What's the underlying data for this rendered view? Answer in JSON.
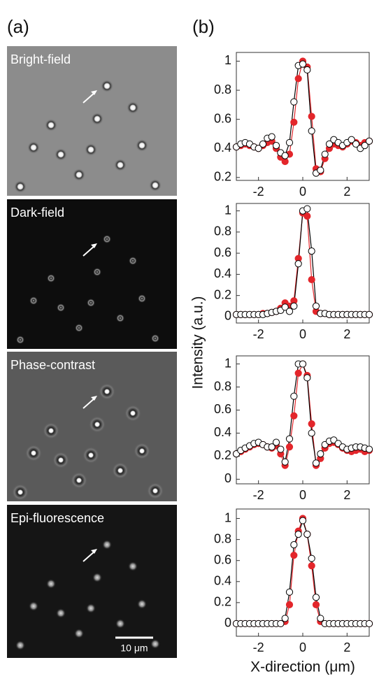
{
  "panel_labels": [
    "(a)",
    "(b)"
  ],
  "images": [
    {
      "label": "Bright-field"
    },
    {
      "label": "Dark-field"
    },
    {
      "label": "Phase-contrast"
    },
    {
      "label": "Epi-fluorescence"
    }
  ],
  "scale_bar": "10 μm",
  "y_label": "Intensity (a.u.)",
  "x_label": "X-direction (μm)",
  "chart_data": [
    {
      "type": "line",
      "x": [
        -3,
        -2.8,
        -2.6,
        -2.4,
        -2.2,
        -2,
        -1.8,
        -1.6,
        -1.4,
        -1.2,
        -1,
        -0.8,
        -0.6,
        -0.4,
        -0.2,
        0,
        0.2,
        0.4,
        0.6,
        0.8,
        1,
        1.2,
        1.4,
        1.6,
        1.8,
        2,
        2.2,
        2.4,
        2.6,
        2.8,
        3
      ],
      "xlim": [
        -3,
        3
      ],
      "xticks": [
        -2,
        0,
        2
      ],
      "ylim": [
        0.18,
        1.06
      ],
      "yticks": [
        0.2,
        0.4,
        0.6,
        0.8,
        1
      ],
      "series": [
        {
          "color": "#e3262b",
          "edgecolor": "#e3262b",
          "values": [
            0.41,
            0.42,
            0.43,
            0.42,
            0.41,
            0.4,
            0.42,
            0.44,
            0.45,
            0.4,
            0.34,
            0.31,
            0.36,
            0.58,
            0.88,
            1.0,
            0.96,
            0.62,
            0.26,
            0.24,
            0.33,
            0.4,
            0.43,
            0.42,
            0.41,
            0.43,
            0.45,
            0.44,
            0.42,
            0.44,
            0.45
          ]
        },
        {
          "color": "#ffffff",
          "edgecolor": "#000000",
          "values": [
            0.41,
            0.43,
            0.44,
            0.43,
            0.41,
            0.4,
            0.43,
            0.47,
            0.48,
            0.42,
            0.37,
            0.35,
            0.44,
            0.72,
            0.97,
            0.98,
            0.94,
            0.52,
            0.23,
            0.25,
            0.36,
            0.43,
            0.46,
            0.44,
            0.42,
            0.44,
            0.46,
            0.43,
            0.4,
            0.42,
            0.45
          ]
        }
      ]
    },
    {
      "type": "line",
      "x": [
        -3,
        -2.8,
        -2.6,
        -2.4,
        -2.2,
        -2,
        -1.8,
        -1.6,
        -1.4,
        -1.2,
        -1,
        -0.8,
        -0.6,
        -0.4,
        -0.2,
        0,
        0.2,
        0.4,
        0.6,
        0.8,
        1,
        1.2,
        1.4,
        1.6,
        1.8,
        2,
        2.2,
        2.4,
        2.6,
        2.8,
        3
      ],
      "xlim": [
        -3,
        3
      ],
      "xticks": [
        -2,
        0,
        2
      ],
      "ylim": [
        -0.06,
        1.07
      ],
      "yticks": [
        0,
        0.2,
        0.4,
        0.6,
        0.8,
        1
      ],
      "series": [
        {
          "color": "#e3262b",
          "edgecolor": "#e3262b",
          "values": [
            0.02,
            0.02,
            0.02,
            0.02,
            0.02,
            0.02,
            0.03,
            0.03,
            0.04,
            0.05,
            0.08,
            0.13,
            0.1,
            0.15,
            0.55,
            0.98,
            0.95,
            0.35,
            0.05,
            0.03,
            0.03,
            0.02,
            0.02,
            0.02,
            0.02,
            0.02,
            0.02,
            0.02,
            0.02,
            0.02,
            0.02
          ]
        },
        {
          "color": "#ffffff",
          "edgecolor": "#000000",
          "values": [
            0.02,
            0.02,
            0.02,
            0.02,
            0.02,
            0.02,
            0.02,
            0.03,
            0.04,
            0.05,
            0.06,
            0.09,
            0.05,
            0.1,
            0.5,
            1.0,
            1.02,
            0.62,
            0.1,
            0.03,
            0.03,
            0.02,
            0.02,
            0.02,
            0.02,
            0.02,
            0.02,
            0.02,
            0.02,
            0.02,
            0.02
          ]
        }
      ]
    },
    {
      "type": "line",
      "x": [
        -3,
        -2.8,
        -2.6,
        -2.4,
        -2.2,
        -2,
        -1.8,
        -1.6,
        -1.4,
        -1.2,
        -1,
        -0.8,
        -0.6,
        -0.4,
        -0.2,
        0,
        0.2,
        0.4,
        0.6,
        0.8,
        1,
        1.2,
        1.4,
        1.6,
        1.8,
        2,
        2.2,
        2.4,
        2.6,
        2.8,
        3
      ],
      "xlim": [
        -3,
        3
      ],
      "xticks": [
        -2,
        0,
        2
      ],
      "ylim": [
        -0.04,
        1.07
      ],
      "yticks": [
        0,
        0.2,
        0.4,
        0.6,
        0.8,
        1
      ],
      "series": [
        {
          "color": "#e3262b",
          "edgecolor": "#e3262b",
          "values": [
            0.22,
            0.24,
            0.26,
            0.28,
            0.3,
            0.31,
            0.3,
            0.28,
            0.27,
            0.29,
            0.22,
            0.12,
            0.28,
            0.55,
            0.92,
            1.0,
            0.9,
            0.48,
            0.12,
            0.18,
            0.27,
            0.31,
            0.32,
            0.3,
            0.27,
            0.25,
            0.24,
            0.25,
            0.26,
            0.24,
            0.25
          ]
        },
        {
          "color": "#ffffff",
          "edgecolor": "#000000",
          "values": [
            0.22,
            0.25,
            0.27,
            0.29,
            0.31,
            0.32,
            0.3,
            0.28,
            0.28,
            0.32,
            0.26,
            0.15,
            0.35,
            0.72,
            1.0,
            1.0,
            0.88,
            0.4,
            0.14,
            0.22,
            0.3,
            0.33,
            0.34,
            0.31,
            0.28,
            0.26,
            0.27,
            0.28,
            0.28,
            0.27,
            0.26
          ]
        }
      ]
    },
    {
      "type": "line",
      "x": [
        -3,
        -2.8,
        -2.6,
        -2.4,
        -2.2,
        -2,
        -1.8,
        -1.6,
        -1.4,
        -1.2,
        -1,
        -0.8,
        -0.6,
        -0.4,
        -0.2,
        0,
        0.2,
        0.4,
        0.6,
        0.8,
        1,
        1.2,
        1.4,
        1.6,
        1.8,
        2,
        2.2,
        2.4,
        2.6,
        2.8,
        3
      ],
      "xlim": [
        -3,
        3
      ],
      "xticks": [
        -2,
        0,
        2
      ],
      "ylim": [
        -0.12,
        1.09
      ],
      "yticks": [
        0,
        0.2,
        0.4,
        0.6,
        0.8,
        1
      ],
      "series": [
        {
          "color": "#e3262b",
          "edgecolor": "#e3262b",
          "values": [
            0,
            0,
            0,
            0,
            0,
            0,
            0,
            0,
            0,
            0,
            0,
            0.02,
            0.18,
            0.65,
            0.88,
            1.0,
            0.85,
            0.55,
            0.18,
            0.02,
            0,
            0,
            0,
            0,
            0,
            0,
            0,
            0,
            0,
            0,
            0
          ]
        },
        {
          "color": "#ffffff",
          "edgecolor": "#000000",
          "values": [
            0,
            0,
            0,
            0,
            0,
            0,
            0,
            0,
            0,
            0,
            0,
            0.05,
            0.3,
            0.75,
            0.85,
            0.98,
            0.85,
            0.62,
            0.25,
            0.05,
            0,
            0,
            0,
            0,
            0,
            0,
            0,
            0,
            0,
            0,
            0
          ]
        }
      ]
    }
  ]
}
